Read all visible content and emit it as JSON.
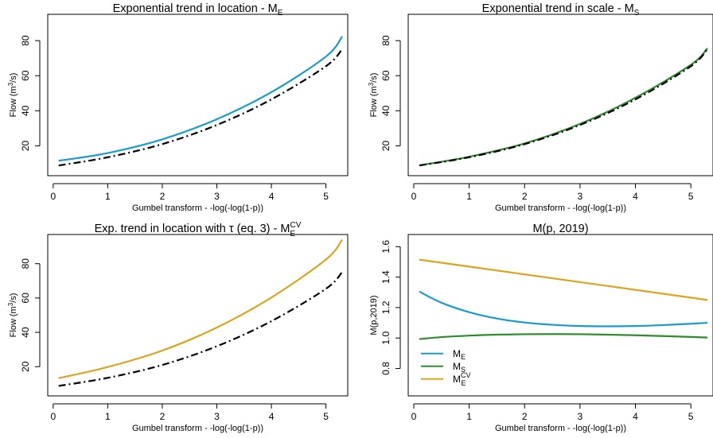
{
  "colors": {
    "ME": "#1a9bcb",
    "MS": "#2e8b2e",
    "MECV": "#d9a520",
    "reference": "#000000"
  },
  "chart_data": [
    {
      "type": "line",
      "title": "Exponential trend in location - M",
      "title_sub": "E",
      "xlabel": "Gumbel transform - -log(-log(1-p))",
      "ylabel": "Flow (m",
      "ylabel_sup": "3",
      "ylabel_end": "/s)",
      "xlim": [
        -0.1,
        5.4
      ],
      "ylim": [
        3,
        95
      ],
      "xticks": [
        0,
        1,
        2,
        3,
        4,
        5
      ],
      "yticks": [
        20,
        40,
        60,
        80
      ],
      "series": [
        {
          "style": "solid",
          "color": "ME",
          "x": [
            0.1,
            1,
            2,
            3,
            4,
            5,
            5.3
          ],
          "y": [
            11.5,
            15.9,
            23.7,
            35.2,
            50.6,
            70.9,
            82.4
          ]
        },
        {
          "style": "dashdot",
          "color": "reference",
          "x": [
            0.1,
            1,
            2,
            3,
            4,
            5,
            5.3
          ],
          "y": [
            8.8,
            13.5,
            21,
            31.9,
            46.5,
            65.4,
            75.2
          ]
        }
      ]
    },
    {
      "type": "line",
      "title": "Exponential trend in scale - M",
      "title_sub": "S",
      "xlabel": "Gumbel transform - -log(-log(1-p))",
      "ylabel": "Flow (m",
      "ylabel_sup": "3",
      "ylabel_end": "/s)",
      "xlim": [
        -0.1,
        5.4
      ],
      "ylim": [
        3,
        95
      ],
      "xticks": [
        0,
        1,
        2,
        3,
        4,
        5
      ],
      "yticks": [
        20,
        40,
        60,
        80
      ],
      "series": [
        {
          "style": "solid",
          "color": "MS",
          "x": [
            0.1,
            1,
            2,
            3,
            4,
            5,
            5.3
          ],
          "y": [
            8.9,
            13.8,
            21.4,
            32.5,
            47.4,
            66.2,
            75.6
          ]
        },
        {
          "style": "dashdot",
          "color": "reference",
          "x": [
            0.1,
            1,
            2,
            3,
            4,
            5,
            5.3
          ],
          "y": [
            8.8,
            13.5,
            21,
            31.9,
            46.5,
            65.4,
            75.2
          ]
        }
      ]
    },
    {
      "type": "line",
      "title": "Exp. trend in location with τ (eq. 3) - M",
      "title_sub": "E",
      "title_sup": "CV",
      "xlabel": "Gumbel transform - -log(-log(1-p))",
      "ylabel": "Flow (m",
      "ylabel_sup": "3",
      "ylabel_end": "/s)",
      "xlim": [
        -0.1,
        5.4
      ],
      "ylim": [
        3,
        97
      ],
      "xticks": [
        0,
        1,
        2,
        3,
        4,
        5
      ],
      "yticks": [
        20,
        40,
        60,
        80
      ],
      "series": [
        {
          "style": "solid",
          "color": "MECV",
          "x": [
            0.1,
            1,
            2,
            3,
            4,
            5,
            5.3
          ],
          "y": [
            13.3,
            19.8,
            29.4,
            42.8,
            60.3,
            82.4,
            94
          ]
        },
        {
          "style": "dashdot",
          "color": "reference",
          "x": [
            0.1,
            1,
            2,
            3,
            4,
            5,
            5.3
          ],
          "y": [
            8.8,
            13.5,
            21,
            31.9,
            46.5,
            65.4,
            75.2
          ]
        }
      ]
    },
    {
      "type": "line",
      "title": "M(p, 2019)",
      "xlabel": "Gumbel transform - -log(-log(1-p))",
      "ylabel": "M(p,2019)",
      "xlim": [
        -0.1,
        5.4
      ],
      "ylim": [
        0.62,
        1.68
      ],
      "xticks": [
        0,
        1,
        2,
        3,
        4,
        5
      ],
      "yticks": [
        0.8,
        1.0,
        1.2,
        1.4,
        1.6
      ],
      "ytick_labels": [
        "0.8",
        "1.0",
        "1.2",
        "1.4",
        "1.6"
      ],
      "legend": [
        {
          "label": "M",
          "sub": "E",
          "color": "ME"
        },
        {
          "label": "M",
          "sub": "S",
          "color": "MS"
        },
        {
          "label": "M",
          "sub": "E",
          "sup": "CV",
          "color": "MECV"
        }
      ],
      "legend_position": "bottom-left",
      "series": [
        {
          "style": "solid",
          "color": "ME",
          "x": [
            0.1,
            0.5,
            1,
            1.5,
            2,
            2.5,
            3,
            3.5,
            4,
            4.5,
            5,
            5.3
          ],
          "y": [
            1.305,
            1.232,
            1.17,
            1.128,
            1.102,
            1.087,
            1.079,
            1.077,
            1.079,
            1.085,
            1.094,
            1.1
          ]
        },
        {
          "style": "solid",
          "color": "MS",
          "x": [
            0.1,
            0.5,
            1,
            1.5,
            2,
            2.5,
            3,
            3.5,
            4,
            4.5,
            5,
            5.3
          ],
          "y": [
            0.993,
            1.006,
            1.016,
            1.022,
            1.025,
            1.026,
            1.025,
            1.022,
            1.018,
            1.013,
            1.007,
            1.003
          ]
        },
        {
          "style": "solid",
          "color": "MECV",
          "x": [
            0.1,
            5.3
          ],
          "y": [
            1.515,
            1.25
          ]
        }
      ]
    }
  ]
}
